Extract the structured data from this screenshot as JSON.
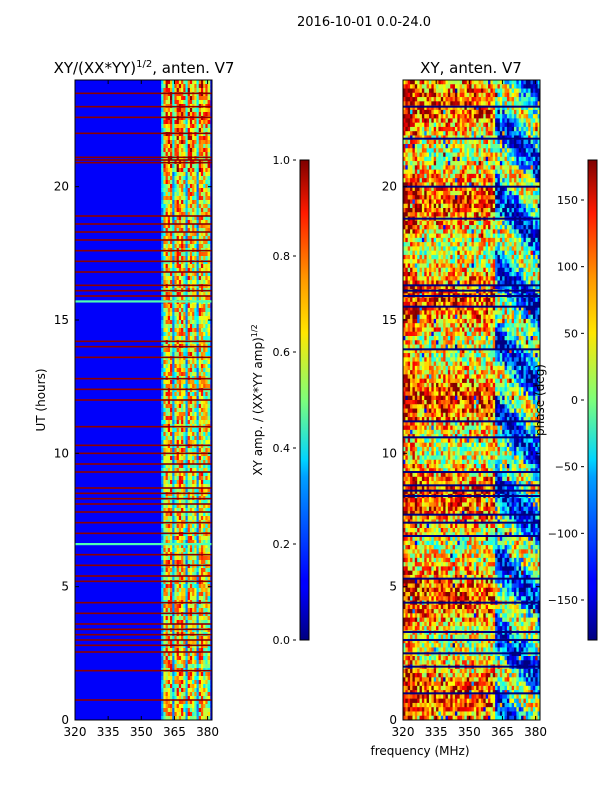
{
  "figure": {
    "suptitle": "2016-10-01 0.0-24.0",
    "shared_xlabel": "frequency (MHz)"
  },
  "chart_data": [
    {
      "type": "heatmap",
      "id": "amp",
      "title_main": "XY/(XX*YY)",
      "title_sup": "1/2",
      "title_tail": ", anten. V7",
      "xlabel": "",
      "ylabel": "UT (hours)",
      "xlim": [
        320,
        382
      ],
      "ylim": [
        0,
        24
      ],
      "xticks": [
        320,
        335,
        350,
        365,
        380
      ],
      "yticks": [
        0,
        5,
        10,
        15,
        20
      ],
      "active_band_mhz": [
        359,
        381
      ],
      "flagged_rows_hours": [
        0.75,
        1.85,
        2.55,
        2.8,
        3.0,
        3.2,
        3.4,
        3.6,
        4.0,
        4.4,
        5.2,
        5.4,
        5.8,
        6.2,
        7.0,
        7.4,
        7.8,
        8.1,
        8.3,
        8.5,
        8.7,
        9.3,
        9.6,
        10.0,
        10.3,
        11.0,
        12.0,
        12.4,
        12.8,
        13.6,
        14.0,
        14.2,
        15.9,
        16.1,
        16.3,
        16.8,
        17.2,
        17.6,
        18.0,
        18.3,
        18.6,
        18.9,
        20.9,
        21.0,
        21.1,
        22.0,
        22.6,
        23.0,
        23.5
      ],
      "colorbar": {
        "label_main": "XY amp. / (XX*YY amp)",
        "label_sup": "1/2",
        "range": [
          0.0,
          1.0
        ],
        "ticks": [
          "0.0",
          "0.2",
          "0.4",
          "0.6",
          "0.8",
          "1.0"
        ]
      }
    },
    {
      "type": "heatmap",
      "id": "phase",
      "title": "XY, anten. V7",
      "xlabel": "frequency (MHz)",
      "ylabel": "",
      "xlim": [
        320,
        382
      ],
      "ylim": [
        0,
        24
      ],
      "xticks": [
        320,
        335,
        350,
        365,
        380
      ],
      "yticks": [
        0,
        5,
        10,
        15,
        20
      ],
      "flagged_rows_hours": [
        1.0,
        2.0,
        2.5,
        3.0,
        3.3,
        4.4,
        5.3,
        6.9,
        7.4,
        7.7,
        8.4,
        8.6,
        8.8,
        9.3,
        10.6,
        11.2,
        13.9,
        15.5,
        15.9,
        16.1,
        16.3,
        18.8,
        20.0,
        21.8,
        23.0
      ],
      "colorbar": {
        "label": "phase (deg)",
        "range": [
          -180,
          180
        ],
        "ticks": [
          "-150",
          "-100",
          "-50",
          "0",
          "50",
          "100",
          "150"
        ]
      }
    }
  ]
}
